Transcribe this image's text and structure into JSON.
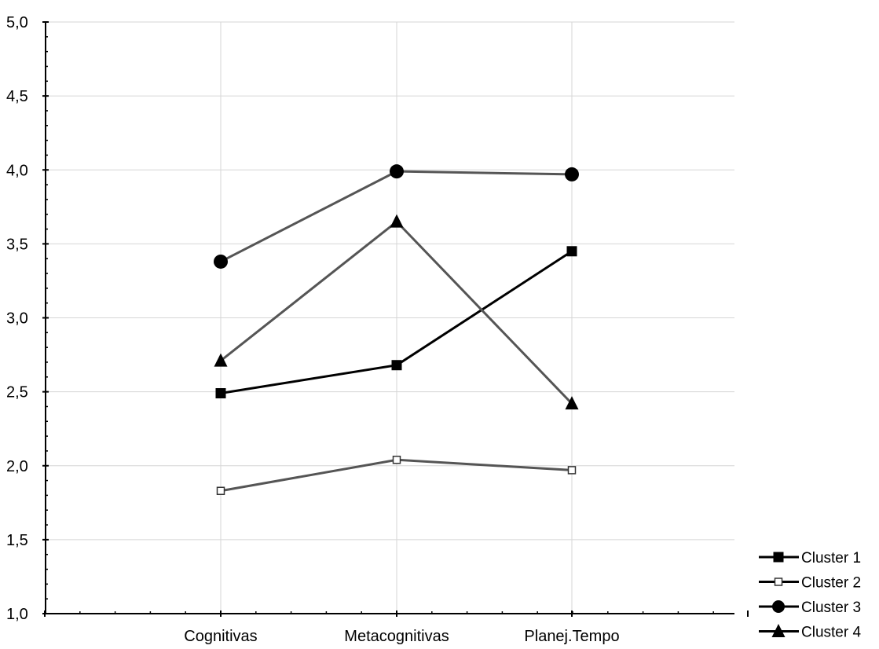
{
  "chart_data": {
    "type": "line",
    "title": "",
    "xlabel": "",
    "ylabel": "",
    "categories": [
      "Cognitivas",
      "Metacognitivas",
      "Planej.Tempo"
    ],
    "ylim": [
      1.0,
      5.0
    ],
    "yticks": [
      1.0,
      1.5,
      2.0,
      2.5,
      3.0,
      3.5,
      4.0,
      4.5,
      5.0
    ],
    "ytick_labels": [
      "1,0",
      "1,5",
      "2,0",
      "2,5",
      "3,0",
      "3,5",
      "4,0",
      "4,5",
      "5,0"
    ],
    "grid": true,
    "legend_position": "bottom-right",
    "series": [
      {
        "name": "Cluster 1",
        "values": [
          2.49,
          2.68,
          3.45
        ],
        "marker": "filled-square",
        "color": "#000000"
      },
      {
        "name": "Cluster 2",
        "values": [
          1.83,
          2.04,
          1.97
        ],
        "marker": "open-square",
        "color": "#555555"
      },
      {
        "name": "Cluster 3",
        "values": [
          3.38,
          3.99,
          3.97
        ],
        "marker": "filled-circle",
        "color": "#555555"
      },
      {
        "name": "Cluster 4",
        "values": [
          2.71,
          3.65,
          2.42
        ],
        "marker": "filled-triangle",
        "color": "#555555"
      }
    ]
  }
}
